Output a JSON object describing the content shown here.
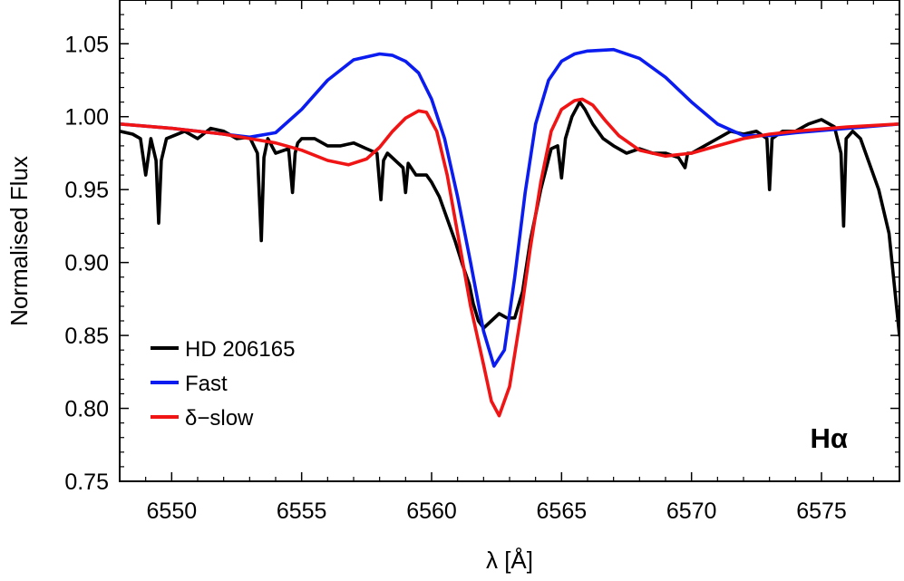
{
  "chart_data": {
    "type": "line",
    "xlabel": "λ [Å]",
    "ylabel": "Normalised Flux",
    "annotation": "Hα",
    "xlim": [
      6548,
      6578
    ],
    "ylim": [
      0.75,
      1.08
    ],
    "xticks": [
      "6550",
      "6555",
      "6560",
      "6565",
      "6570",
      "6575"
    ],
    "yticks": [
      "0.75",
      "0.80",
      "0.85",
      "0.90",
      "0.95",
      "1.00",
      "1.05"
    ],
    "legend_position": "bottom-left",
    "series": [
      {
        "name": "HD 206165",
        "color": "#000000",
        "x": [
          6548.0,
          6548.5,
          6548.8,
          6549.0,
          6549.2,
          6549.4,
          6549.5,
          6549.6,
          6549.8,
          6550.5,
          6551.0,
          6551.5,
          6552.0,
          6552.5,
          6553.0,
          6553.3,
          6553.45,
          6553.55,
          6553.7,
          6554.0,
          6554.5,
          6554.65,
          6554.75,
          6554.85,
          6555.0,
          6555.5,
          6556.0,
          6556.5,
          6557.0,
          6557.5,
          6557.9,
          6558.05,
          6558.15,
          6558.3,
          6558.6,
          6558.9,
          6559.0,
          6559.1,
          6559.4,
          6559.8,
          6560.0,
          6560.3,
          6560.6,
          6560.9,
          6561.2,
          6561.45,
          6561.6,
          6561.8,
          6562.0,
          6562.3,
          6562.6,
          6562.9,
          6563.2,
          6563.5,
          6563.8,
          6564.2,
          6564.6,
          6564.85,
          6565.0,
          6565.15,
          6565.4,
          6565.7,
          6565.9,
          6566.2,
          6566.6,
          6567.0,
          6567.5,
          6568.0,
          6568.5,
          6569.0,
          6569.5,
          6569.75,
          6569.85,
          6570.0,
          6570.5,
          6571.0,
          6571.5,
          6572.0,
          6572.5,
          6572.9,
          6573.0,
          6573.1,
          6573.5,
          6574.0,
          6574.5,
          6575.0,
          6575.5,
          6575.75,
          6575.85,
          6575.95,
          6576.2,
          6576.5,
          6576.8,
          6577.2,
          6577.6,
          6578.0
        ],
        "values": [
          0.99,
          0.988,
          0.985,
          0.96,
          0.985,
          0.97,
          0.927,
          0.97,
          0.985,
          0.99,
          0.985,
          0.992,
          0.99,
          0.985,
          0.986,
          0.975,
          0.915,
          0.972,
          0.985,
          0.975,
          0.978,
          0.948,
          0.975,
          0.982,
          0.985,
          0.985,
          0.98,
          0.98,
          0.982,
          0.978,
          0.975,
          0.943,
          0.97,
          0.975,
          0.97,
          0.965,
          0.948,
          0.968,
          0.96,
          0.96,
          0.955,
          0.945,
          0.93,
          0.915,
          0.898,
          0.885,
          0.872,
          0.86,
          0.855,
          0.86,
          0.865,
          0.862,
          0.862,
          0.88,
          0.915,
          0.95,
          0.978,
          0.98,
          0.958,
          0.985,
          1.0,
          1.01,
          1.005,
          0.995,
          0.985,
          0.98,
          0.975,
          0.978,
          0.975,
          0.975,
          0.972,
          0.965,
          0.975,
          0.975,
          0.98,
          0.985,
          0.99,
          0.988,
          0.99,
          0.985,
          0.95,
          0.985,
          0.99,
          0.99,
          0.995,
          0.998,
          0.993,
          0.975,
          0.925,
          0.985,
          0.99,
          0.985,
          0.97,
          0.95,
          0.92,
          0.85
        ]
      },
      {
        "name": "Fast",
        "color": "#0b1cf0",
        "x": [
          6548.0,
          6550.0,
          6552.0,
          6553.0,
          6554.0,
          6555.0,
          6556.0,
          6557.0,
          6558.0,
          6558.5,
          6559.0,
          6559.5,
          6560.0,
          6560.5,
          6561.0,
          6561.5,
          6562.0,
          6562.4,
          6562.8,
          6563.2,
          6563.6,
          6564.0,
          6564.5,
          6565.0,
          6565.5,
          6566.0,
          6567.0,
          6568.0,
          6569.0,
          6570.0,
          6571.0,
          6572.0,
          6573.0,
          6574.0,
          6576.0,
          6578.0
        ],
        "values": [
          0.995,
          0.992,
          0.988,
          0.986,
          0.989,
          1.005,
          1.025,
          1.039,
          1.043,
          1.042,
          1.038,
          1.03,
          1.012,
          0.985,
          0.945,
          0.9,
          0.853,
          0.829,
          0.84,
          0.89,
          0.948,
          0.995,
          1.025,
          1.038,
          1.043,
          1.045,
          1.046,
          1.04,
          1.027,
          1.01,
          0.995,
          0.987,
          0.987,
          0.989,
          0.992,
          0.995
        ]
      },
      {
        "name": "δ−slow",
        "color": "#f01414",
        "x": [
          6548.0,
          6550.0,
          6552.0,
          6553.0,
          6554.0,
          6555.0,
          6556.0,
          6556.8,
          6557.5,
          6558.0,
          6558.5,
          6559.0,
          6559.5,
          6559.8,
          6560.2,
          6560.6,
          6561.0,
          6561.5,
          6562.0,
          6562.3,
          6562.6,
          6563.0,
          6563.4,
          6563.8,
          6564.2,
          6564.6,
          6565.0,
          6565.5,
          6565.8,
          6566.2,
          6566.7,
          6567.2,
          6568.0,
          6569.0,
          6570.0,
          6571.0,
          6572.0,
          6573.0,
          6574.0,
          6576.0,
          6578.0
        ],
        "values": [
          0.995,
          0.992,
          0.988,
          0.985,
          0.982,
          0.977,
          0.97,
          0.967,
          0.971,
          0.979,
          0.99,
          0.999,
          1.004,
          1.003,
          0.99,
          0.96,
          0.92,
          0.87,
          0.83,
          0.805,
          0.795,
          0.815,
          0.86,
          0.91,
          0.955,
          0.99,
          1.005,
          1.011,
          1.012,
          1.008,
          0.997,
          0.987,
          0.977,
          0.973,
          0.975,
          0.98,
          0.985,
          0.988,
          0.99,
          0.993,
          0.995
        ]
      }
    ]
  }
}
